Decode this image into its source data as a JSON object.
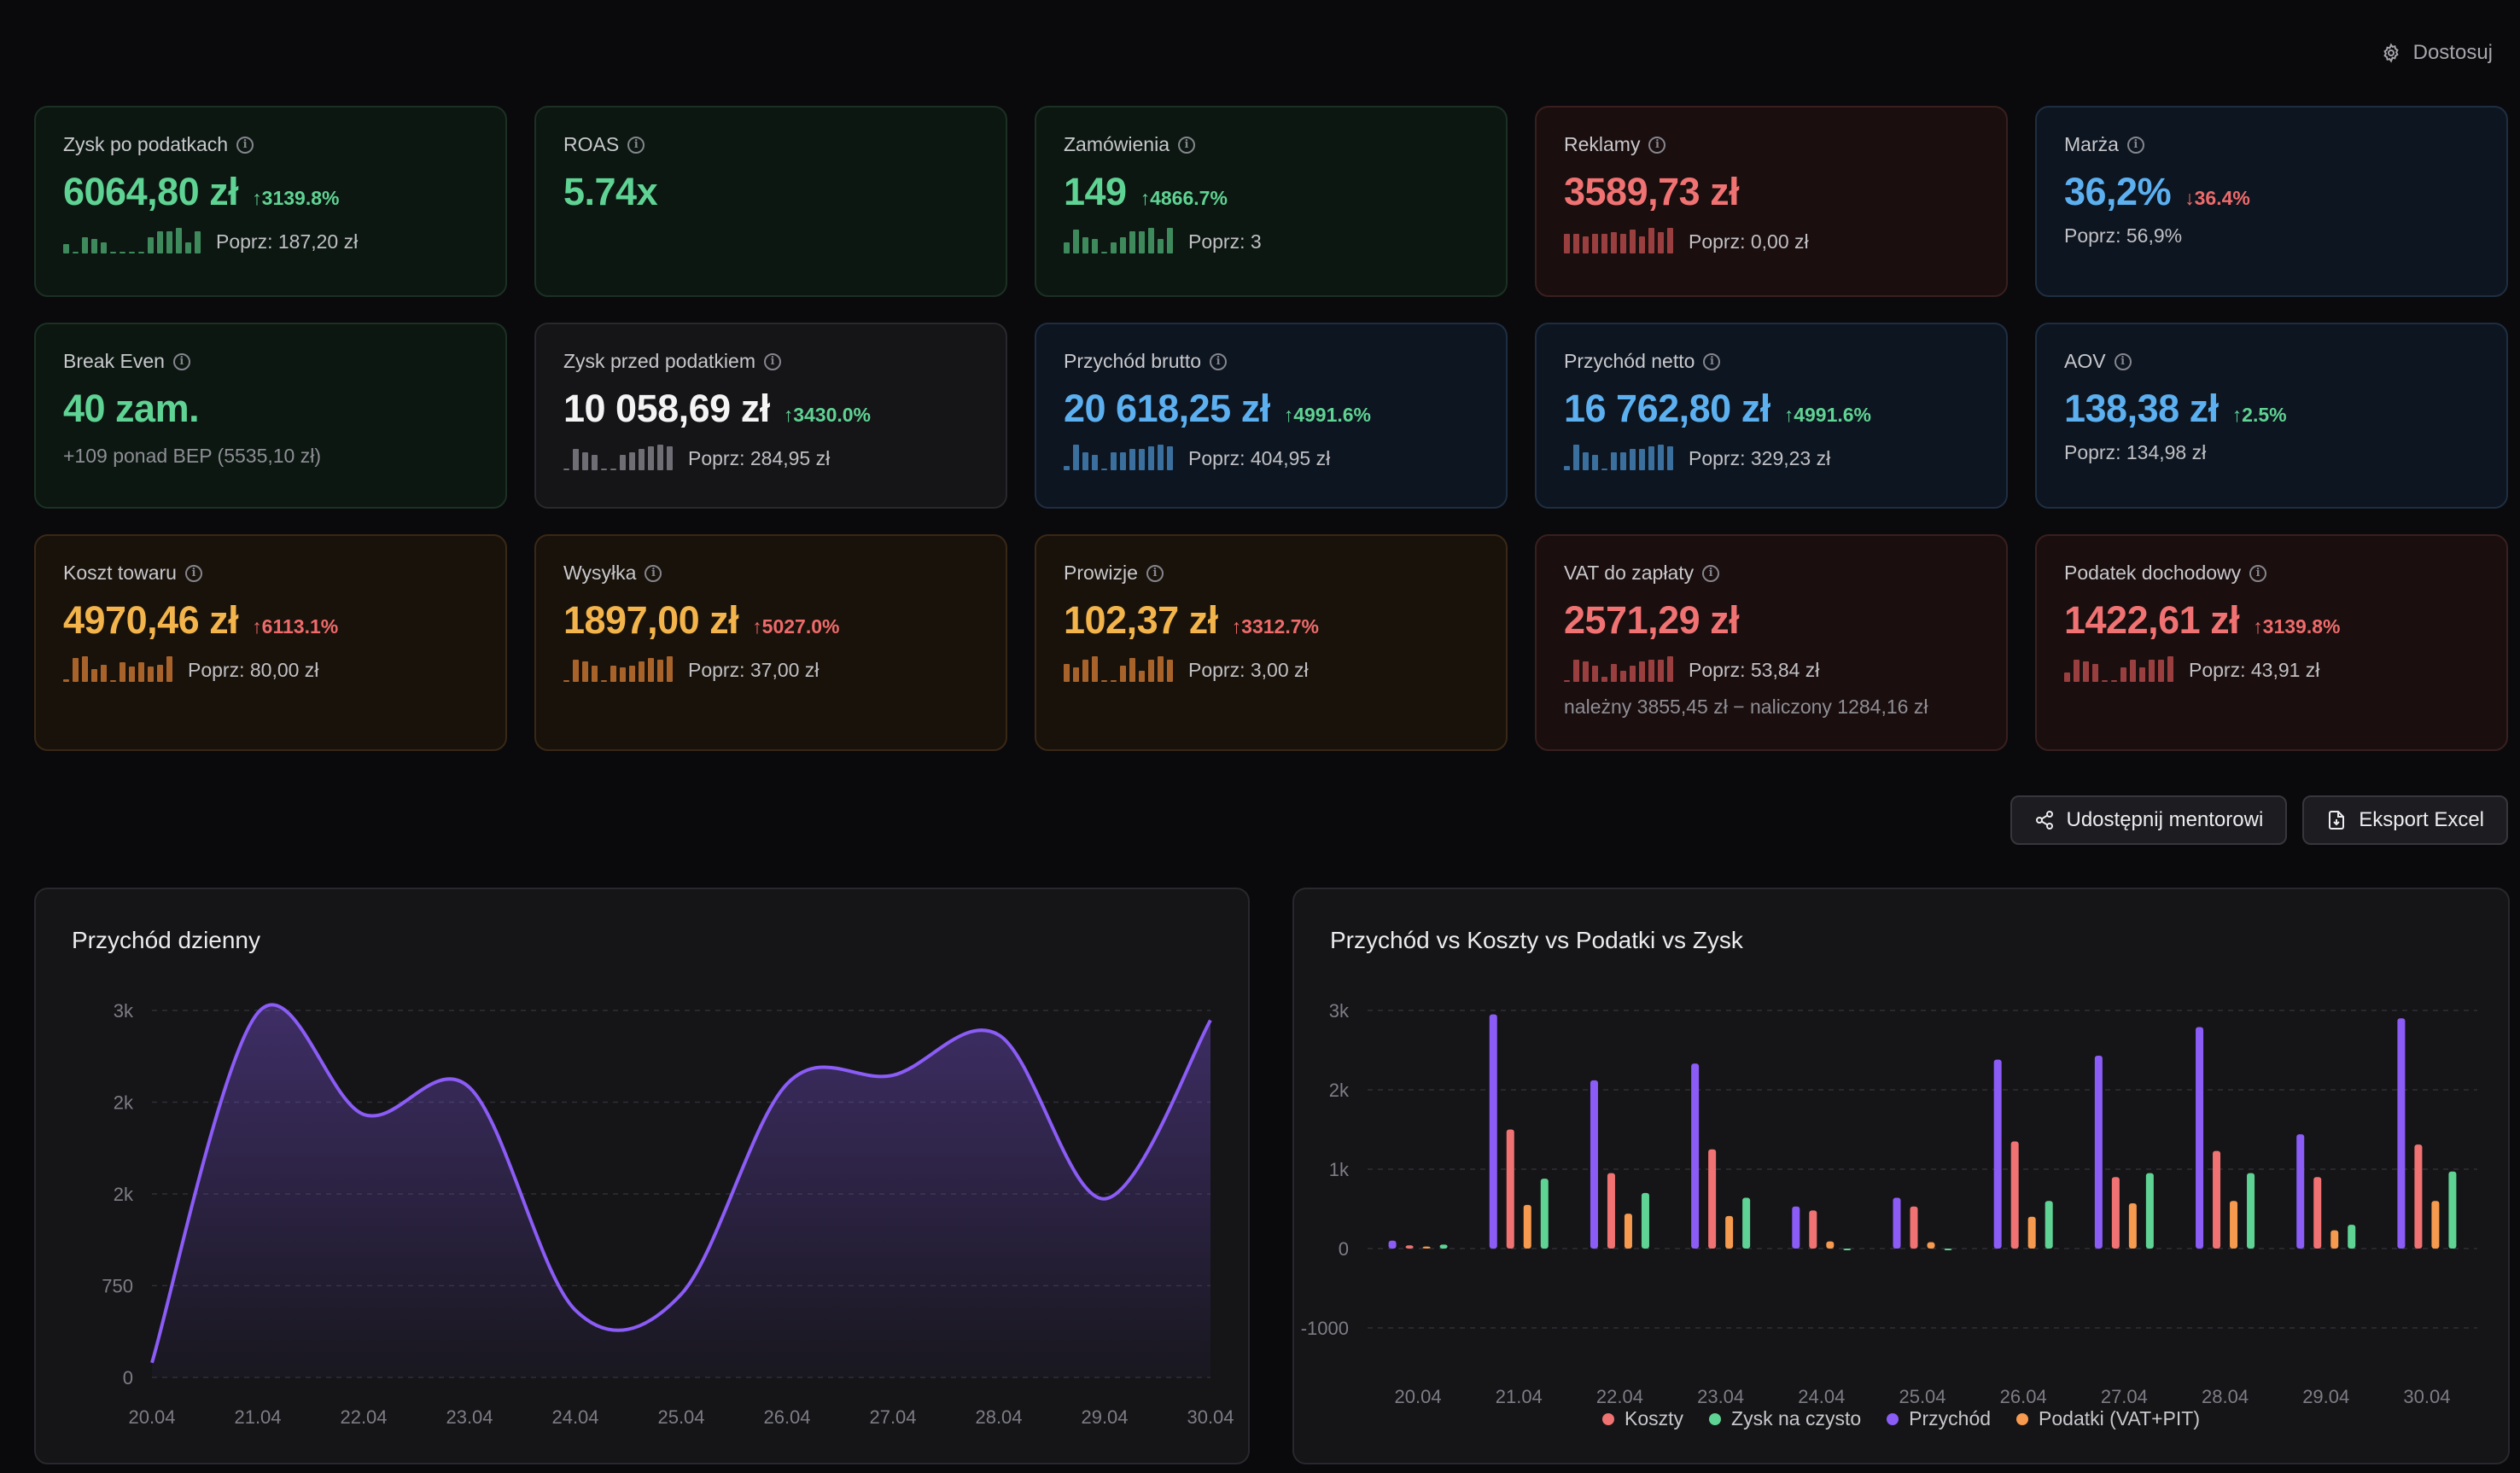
{
  "header": {
    "customize_label": "Dostosuj"
  },
  "kpis": [
    {
      "label": "Zysk po podatkach",
      "value": "6064,80 zł",
      "delta": "↑3139.8%",
      "delta_dir": "up",
      "prev": "Poprz: 187,20 zł",
      "tone": "green",
      "value_color": "green",
      "spark_color": "#3f8a5c",
      "spark": [
        5,
        0,
        9,
        8,
        6,
        0,
        0,
        0,
        0,
        9,
        12,
        12,
        14,
        6,
        12
      ]
    },
    {
      "label": "ROAS",
      "value": "5.74x",
      "tone": "green",
      "value_color": "green"
    },
    {
      "label": "Zamówienia",
      "value": "149",
      "delta": "↑4866.7%",
      "delta_dir": "up",
      "prev": "Poprz: 3",
      "tone": "green",
      "value_color": "green",
      "spark_color": "#3f8a5c",
      "spark": [
        6,
        13,
        9,
        8,
        0,
        6,
        9,
        12,
        12,
        14,
        8,
        14
      ]
    },
    {
      "label": "Reklamy",
      "value": "3589,73 zł",
      "tone": "red",
      "value_color": "red",
      "prev": "Poprz: 0,00 zł",
      "spark_color": "#9a3f3f",
      "spark": [
        9,
        9,
        8,
        9,
        9,
        10,
        9,
        11,
        8,
        12,
        10,
        12
      ]
    },
    {
      "label": "Marża",
      "value": "36,2%",
      "delta": "↓36.4%",
      "delta_dir": "down",
      "prev": "Poprz: 56,9%",
      "tone": "blue",
      "value_color": "blue"
    },
    {
      "label": "Break Even",
      "value": "40 zam.",
      "tone": "green",
      "value_color": "green",
      "sub": "+109 ponad BEP (5535,10 zł)"
    },
    {
      "label": "Zysk przed podatkiem",
      "value": "10 058,69 zł",
      "delta": "↑3430.0%",
      "delta_dir": "up",
      "prev": "Poprz: 284,95 zł",
      "tone": "neutral",
      "value_color": "white",
      "spark_color": "#6e6e74",
      "spark": [
        1,
        11,
        9,
        8,
        0,
        1,
        8,
        9,
        11,
        12,
        13,
        12
      ]
    },
    {
      "label": "Przychód brutto",
      "value": "20 618,25 zł",
      "delta": "↑4991.6%",
      "delta_dir": "up",
      "prev": "Poprz: 404,95 zł",
      "tone": "blue",
      "value_color": "blue",
      "spark_color": "#3b6f9e",
      "spark": [
        2,
        13,
        9,
        8,
        0,
        9,
        9,
        11,
        11,
        12,
        13,
        12
      ]
    },
    {
      "label": "Przychód netto",
      "value": "16 762,80 zł",
      "delta": "↑4991.6%",
      "delta_dir": "up",
      "prev": "Poprz: 329,23 zł",
      "tone": "blue",
      "value_color": "blue",
      "spark_color": "#3b6f9e",
      "spark": [
        2,
        13,
        9,
        8,
        0,
        9,
        9,
        11,
        11,
        12,
        13,
        12
      ]
    },
    {
      "label": "AOV",
      "value": "138,38 zł",
      "delta": "↑2.5%",
      "delta_dir": "up",
      "prev": "Poprz: 134,98 zł",
      "tone": "blue",
      "value_color": "blue"
    },
    {
      "label": "Koszt towaru",
      "value": "4970,46 zł",
      "delta": "↑6113.1%",
      "delta_dir": "up_red",
      "prev": "Poprz: 80,00 zł",
      "tone": "orange",
      "value_color": "orange",
      "spark_color": "#a8632a",
      "spark": [
        1,
        11,
        12,
        6,
        8,
        0,
        9,
        7,
        9,
        7,
        8,
        12
      ]
    },
    {
      "label": "Wysyłka",
      "value": "1897,00 zł",
      "delta": "↑5027.0%",
      "delta_dir": "up_red",
      "prev": "Poprz: 37,00 zł",
      "tone": "orange",
      "value_color": "orange",
      "spark_color": "#a8632a",
      "spark": [
        1,
        12,
        11,
        9,
        0,
        9,
        8,
        9,
        11,
        13,
        12,
        14
      ]
    },
    {
      "label": "Prowizje",
      "value": "102,37 zł",
      "delta": "↑3312.7%",
      "delta_dir": "up_red",
      "prev": "Poprz: 3,00 zł",
      "tone": "orange",
      "value_color": "orange",
      "spark_color": "#a8632a",
      "spark": [
        10,
        8,
        12,
        14,
        0,
        0,
        9,
        13,
        6,
        12,
        14,
        12
      ]
    },
    {
      "label": "VAT do zapłaty",
      "value": "2571,29 zł",
      "tone": "red",
      "value_color": "red",
      "prev": "Poprz: 53,84 zł",
      "sub": "należny 3855,45 zł − naliczony 1284,16 zł",
      "spark_color": "#9a3f3f",
      "spark": [
        1,
        12,
        11,
        9,
        3,
        10,
        6,
        9,
        11,
        12,
        12,
        14
      ]
    },
    {
      "label": "Podatek dochodowy",
      "value": "1422,61 zł",
      "delta": "↑3139.8%",
      "delta_dir": "up_red",
      "prev": "Poprz: 43,91 zł",
      "tone": "red",
      "value_color": "red",
      "spark_color": "#9a3f3f",
      "spark": [
        5,
        12,
        11,
        10,
        0,
        0,
        8,
        12,
        8,
        12,
        12,
        14
      ]
    }
  ],
  "actions": {
    "share_label": "Udostępnij mentorowi",
    "export_label": "Eksport Excel"
  },
  "colors": {
    "revenue": "#8b5cf6",
    "costs": "#f07272",
    "profit": "#5fd393",
    "taxes": "#f59a4e"
  },
  "chart_data": [
    {
      "type": "area",
      "title": "Przychód dzienny",
      "x": [
        "20.04",
        "21.04",
        "22.04",
        "23.04",
        "24.04",
        "25.04",
        "26.04",
        "27.04",
        "28.04",
        "29.04",
        "30.04"
      ],
      "y_tick_labels": [
        "0",
        "750",
        "2k",
        "2k",
        "3k"
      ],
      "y_tick_values": [
        0,
        750,
        1500,
        2250,
        3000
      ],
      "ylim": [
        0,
        3000
      ],
      "series": [
        {
          "values": [
            120,
            2980,
            2150,
            2370,
            550,
            680,
            2400,
            2470,
            2800,
            1460,
            2920
          ]
        }
      ]
    },
    {
      "type": "bar",
      "title": "Przychód vs Koszty vs Podatki vs Zysk",
      "categories": [
        "20.04",
        "21.04",
        "22.04",
        "23.04",
        "24.04",
        "25.04",
        "26.04",
        "27.04",
        "28.04",
        "29.04",
        "30.04"
      ],
      "y_tick_labels": [
        "-1000",
        "0",
        "1k",
        "2k",
        "3k"
      ],
      "y_tick_values": [
        -1000,
        0,
        1000,
        2000,
        3000
      ],
      "ylim": [
        -1000,
        3000
      ],
      "legend_position": "bottom",
      "series": [
        {
          "name": "Koszty",
          "values": [
            40,
            1500,
            950,
            1250,
            480,
            530,
            1350,
            900,
            1230,
            900,
            1310
          ]
        },
        {
          "name": "Zysk na czysto",
          "values": [
            50,
            880,
            700,
            640,
            -20,
            -20,
            600,
            950,
            950,
            300,
            970
          ]
        },
        {
          "name": "Przychód",
          "values": [
            100,
            2950,
            2120,
            2330,
            530,
            640,
            2380,
            2430,
            2790,
            1440,
            2900
          ]
        },
        {
          "name": "Podatki (VAT+PIT)",
          "values": [
            25,
            550,
            440,
            410,
            90,
            80,
            400,
            570,
            600,
            230,
            600
          ]
        }
      ]
    }
  ]
}
